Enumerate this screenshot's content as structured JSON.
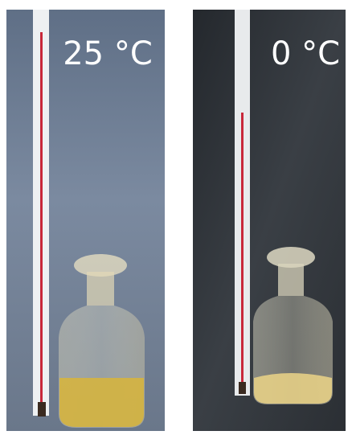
{
  "panels": [
    {
      "label": "25 °C"
    },
    {
      "label": "0 °C"
    }
  ]
}
